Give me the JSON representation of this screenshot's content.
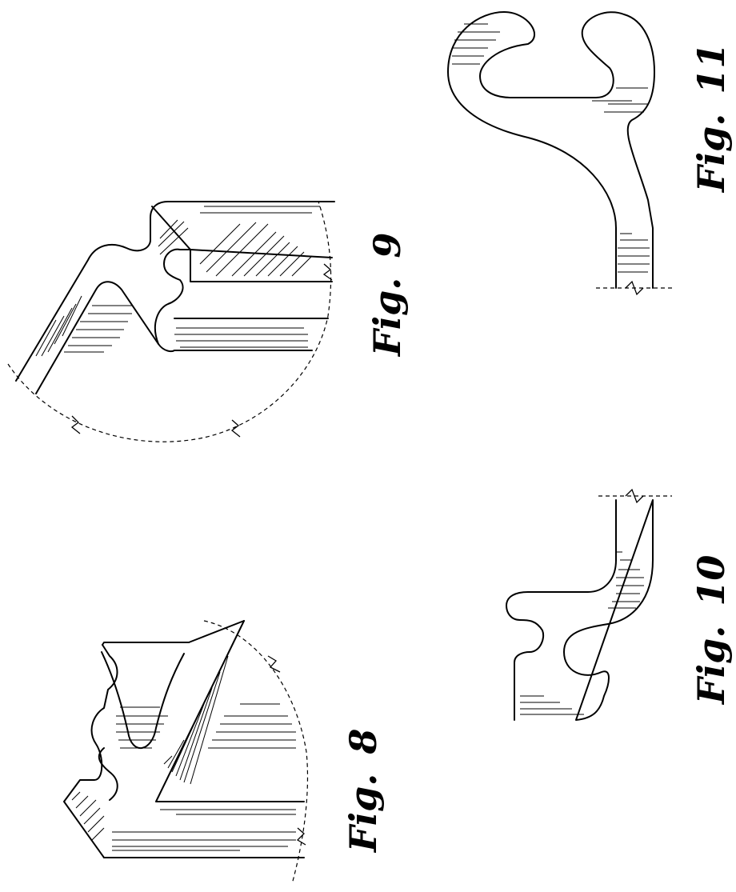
{
  "figures": [
    {
      "id": "fig8",
      "prefix": "Fig.",
      "number": "8"
    },
    {
      "id": "fig9",
      "prefix": "Fig.",
      "number": "9"
    },
    {
      "id": "fig10",
      "prefix": "Fig.",
      "number": "10"
    },
    {
      "id": "fig11",
      "prefix": "Fig.",
      "number": "11"
    }
  ],
  "colors": {
    "ink": "#000000",
    "paper": "#ffffff"
  }
}
